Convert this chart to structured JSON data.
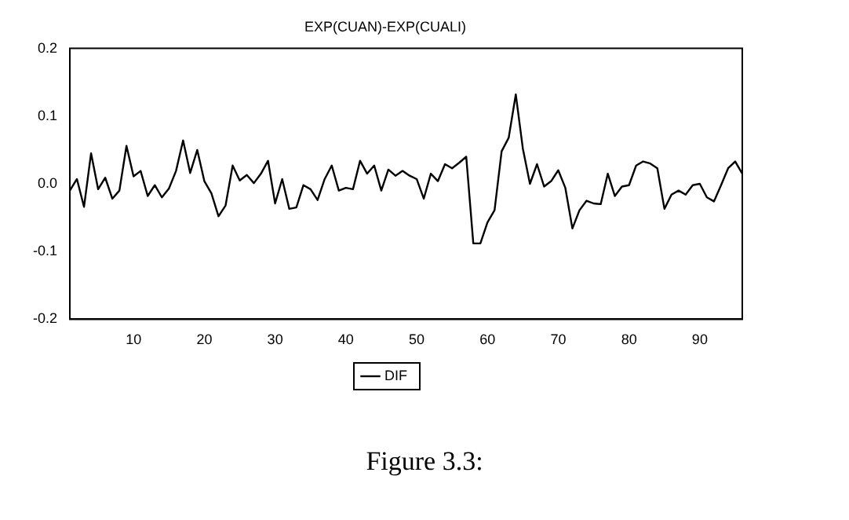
{
  "chart_data": {
    "type": "line",
    "title": "EXP(CUAN)-EXP(CUALI)",
    "x": [
      1,
      2,
      3,
      4,
      5,
      6,
      7,
      8,
      9,
      10,
      11,
      12,
      13,
      14,
      15,
      16,
      17,
      18,
      19,
      20,
      21,
      22,
      23,
      24,
      25,
      26,
      27,
      28,
      29,
      30,
      31,
      32,
      33,
      34,
      35,
      36,
      37,
      38,
      39,
      40,
      41,
      42,
      43,
      44,
      45,
      46,
      47,
      48,
      49,
      50,
      51,
      52,
      53,
      54,
      55,
      56,
      57,
      58,
      59,
      60,
      61,
      62,
      63,
      64,
      65,
      66,
      67,
      68,
      69,
      70,
      71,
      72,
      73,
      74,
      75,
      76,
      77,
      78,
      79,
      80,
      81,
      82,
      83,
      84,
      85,
      86,
      87,
      88,
      89,
      90,
      91,
      92,
      93,
      94,
      95,
      96
    ],
    "series": [
      {
        "name": "DIF",
        "color": "#000000",
        "values": [
          -0.01,
          0.007,
          -0.034,
          0.045,
          -0.008,
          0.009,
          -0.022,
          -0.01,
          0.056,
          0.011,
          0.019,
          -0.018,
          -0.002,
          -0.02,
          -0.007,
          0.019,
          0.064,
          0.016,
          0.05,
          0.004,
          -0.014,
          -0.048,
          -0.032,
          0.027,
          0.005,
          0.013,
          0.001,
          0.015,
          0.034,
          -0.029,
          0.007,
          -0.037,
          -0.035,
          -0.002,
          -0.008,
          -0.024,
          0.007,
          0.027,
          -0.01,
          -0.006,
          -0.008,
          0.034,
          0.015,
          0.027,
          -0.01,
          0.021,
          0.012,
          0.019,
          0.012,
          0.007,
          -0.022,
          0.015,
          0.004,
          0.029,
          0.023,
          0.031,
          0.04,
          -0.088,
          -0.088,
          -0.057,
          -0.039,
          0.048,
          0.068,
          0.132,
          0.052,
          0.0,
          0.029,
          -0.004,
          0.004,
          0.02,
          -0.006,
          -0.066,
          -0.039,
          -0.025,
          -0.029,
          -0.03,
          0.015,
          -0.018,
          -0.004,
          -0.002,
          0.027,
          0.033,
          0.03,
          0.023,
          -0.037,
          -0.016,
          -0.01,
          -0.016,
          -0.002,
          0,
          -0.02,
          -0.026,
          -0.002,
          0.023,
          0.033,
          0.015
        ]
      }
    ],
    "xlim": [
      1,
      96
    ],
    "xticks": [
      10,
      20,
      30,
      40,
      50,
      60,
      70,
      80,
      90
    ],
    "ylim": [
      -0.2,
      0.2
    ],
    "yticks": [
      {
        "value": -0.2,
        "label": "-0.2"
      },
      {
        "value": -0.1,
        "label": "-0.1"
      },
      {
        "value": 0,
        "label": "0.0"
      },
      {
        "value": 0.1,
        "label": "0.1"
      },
      {
        "value": 0.2,
        "label": "0.2"
      }
    ],
    "grid": false,
    "legend": "bottom",
    "marker": "none",
    "line_style": "solid",
    "annotations": [
      "Figure 3.3:"
    ]
  }
}
